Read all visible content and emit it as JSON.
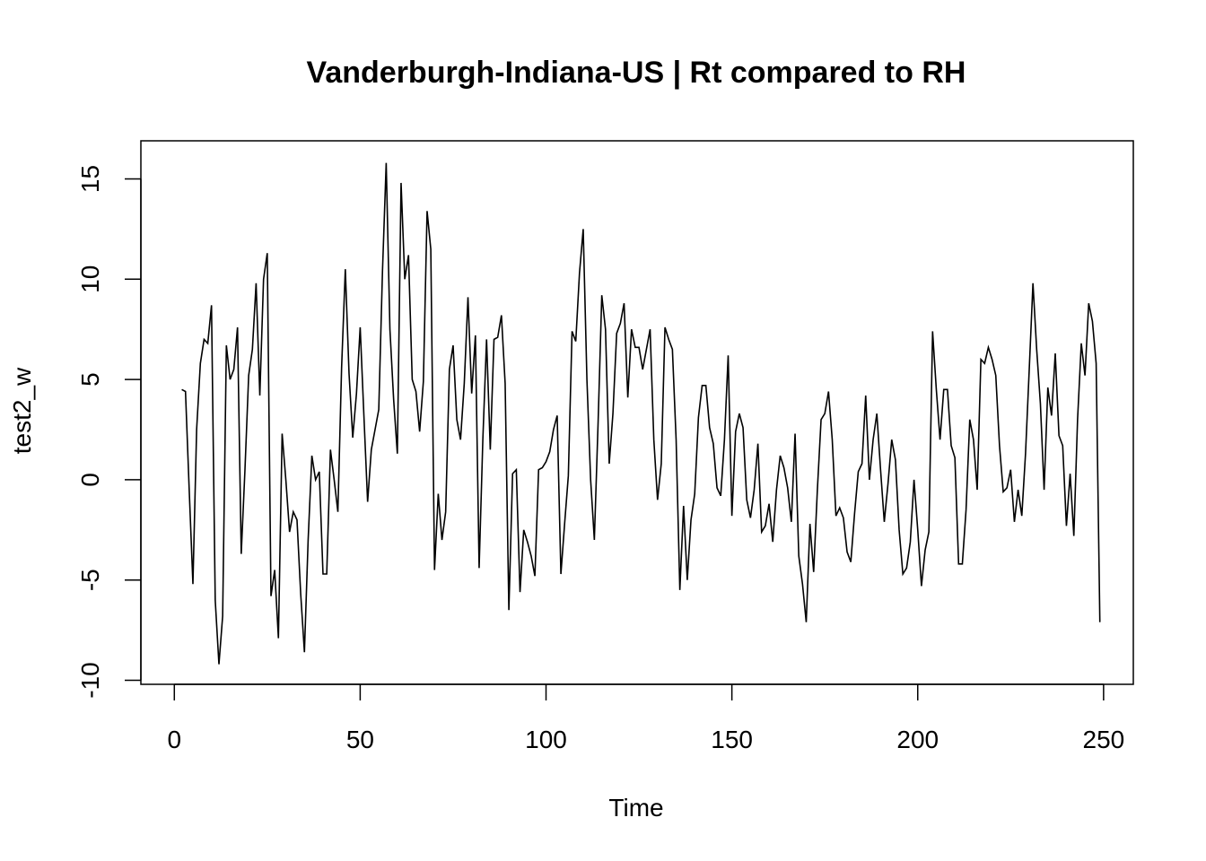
{
  "chart_data": {
    "type": "line",
    "title": "Vanderburgh-Indiana-US | Rt compared to RH",
    "xlabel": "Time",
    "ylabel": "test2_w",
    "xlim": [
      -9,
      258
    ],
    "ylim": [
      -10.2,
      16.9
    ],
    "x_ticks": [
      0,
      50,
      100,
      150,
      200,
      250
    ],
    "x_tick_labels": [
      "0",
      "50",
      "100",
      "150",
      "200",
      "250"
    ],
    "y_ticks": [
      -10,
      -5,
      0,
      5,
      10,
      15
    ],
    "y_tick_labels": [
      "-10",
      "-5",
      "0",
      "5",
      "10",
      "15"
    ],
    "grid": false,
    "legend": "none",
    "line_color": "#000000",
    "series": [
      {
        "x_start": 2,
        "values": [
          4.5,
          4.4,
          -0.5,
          -5.2,
          2.5,
          5.8,
          7.0,
          6.8,
          8.7,
          -6.0,
          -9.2,
          -6.8,
          6.7,
          5.0,
          5.5,
          7.6,
          -3.7,
          0.5,
          5.2,
          6.5,
          9.8,
          4.2,
          10.0,
          11.3,
          -5.8,
          -4.5,
          -7.9,
          2.3,
          0.0,
          -2.6,
          -1.6,
          -2.0,
          -5.7,
          -8.6,
          -3.0,
          1.2,
          0.0,
          0.4,
          -4.7,
          -4.7,
          1.5,
          0.0,
          -1.6,
          5.6,
          10.5,
          5.3,
          2.1,
          4.3,
          7.6,
          3.2,
          -1.1,
          1.5,
          2.5,
          3.5,
          10.4,
          15.8,
          7.5,
          4.0,
          1.3,
          14.8,
          10.0,
          11.2,
          5.0,
          4.4,
          2.4,
          4.9,
          13.4,
          11.5,
          -4.5,
          -0.7,
          -3.0,
          -1.6,
          5.5,
          6.7,
          3.0,
          2.0,
          4.8,
          9.1,
          4.3,
          7.2,
          -4.4,
          2.0,
          7.0,
          1.5,
          7.0,
          7.1,
          8.2,
          4.8,
          -6.5,
          0.3,
          0.5,
          -5.6,
          -2.5,
          -3.1,
          -3.8,
          -4.8,
          0.5,
          0.6,
          0.9,
          1.4,
          2.5,
          3.2,
          -4.7,
          -2.2,
          0.2,
          7.4,
          6.9,
          10.3,
          12.5,
          5.0,
          0.0,
          -3.0,
          2.8,
          9.2,
          7.5,
          0.8,
          3.3,
          7.3,
          7.8,
          8.8,
          4.1,
          7.5,
          6.6,
          6.6,
          5.5,
          6.5,
          7.5,
          2.0,
          -1.0,
          0.8,
          7.6,
          7.0,
          6.5,
          2.0,
          -5.5,
          -1.3,
          -5.0,
          -2.0,
          -0.7,
          3.1,
          4.7,
          4.7,
          2.6,
          1.8,
          -0.4,
          -0.8,
          2.0,
          6.2,
          -1.8,
          2.4,
          3.3,
          2.6,
          -1.0,
          -1.9,
          -0.5,
          1.8,
          -2.6,
          -2.3,
          -1.2,
          -3.1,
          -0.5,
          1.2,
          0.6,
          -0.4,
          -2.1,
          2.3,
          -3.8,
          -5.2,
          -7.1,
          -2.2,
          -4.6,
          -0.5,
          3.0,
          3.3,
          4.4,
          2.0,
          -1.8,
          -1.4,
          -1.9,
          -3.6,
          -4.1,
          -1.7,
          0.4,
          0.8,
          4.2,
          0.0,
          2.0,
          3.3,
          0.5,
          -2.1,
          -0.2,
          2.0,
          1.0,
          -2.5,
          -4.7,
          -4.4,
          -3.1,
          0.0,
          -2.5,
          -5.3,
          -3.5,
          -2.6,
          7.4,
          4.5,
          2.0,
          4.5,
          4.5,
          1.7,
          1.1,
          -4.2,
          -4.2,
          -1.5,
          3.0,
          2.0,
          -0.5,
          6.0,
          5.8,
          6.6,
          6.0,
          5.2,
          1.7,
          -0.6,
          -0.4,
          0.5,
          -2.1,
          -0.5,
          -1.8,
          1.3,
          5.5,
          9.8,
          6.5,
          3.8,
          -0.5,
          4.6,
          3.2,
          6.3,
          2.2,
          1.7,
          -2.3,
          0.3,
          -2.8,
          3.0,
          6.8,
          5.2,
          8.8,
          7.9,
          5.8,
          -7.1
        ]
      }
    ]
  }
}
